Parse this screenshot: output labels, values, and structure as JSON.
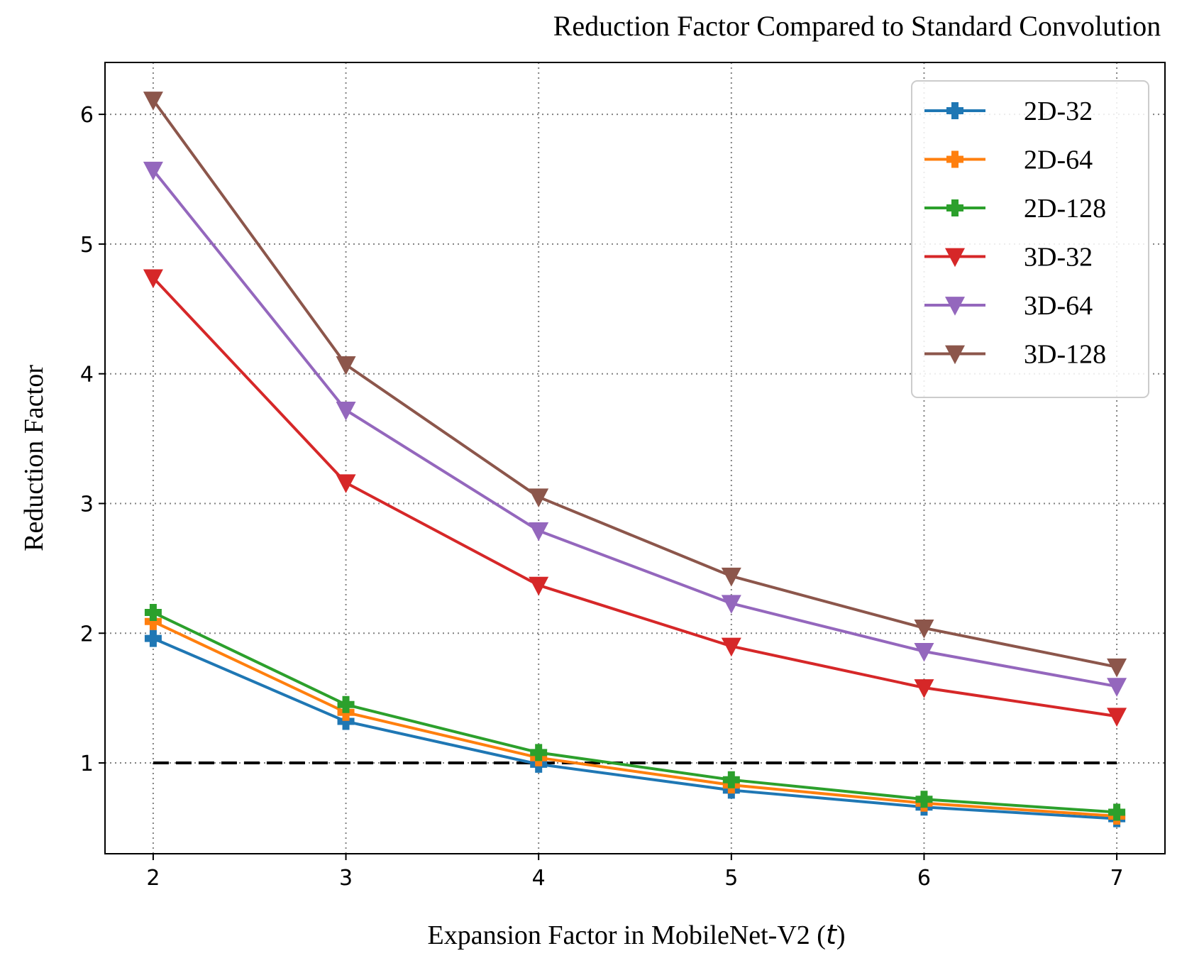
{
  "chart_data": {
    "type": "line",
    "title": "Reduction Factor Compared to Standard Convolution",
    "xlabel": "Expansion Factor in MobileNet-V2 (",
    "xlabel_var": "t",
    "xlabel_end": ")",
    "ylabel": "Reduction Factor",
    "x": [
      2,
      3,
      4,
      5,
      6,
      7
    ],
    "xlim": [
      1.75,
      7.25
    ],
    "ylim": [
      0.3,
      6.4
    ],
    "xticks": [
      "2",
      "3",
      "4",
      "5",
      "6",
      "7"
    ],
    "yticks": [
      "1",
      "2",
      "3",
      "4",
      "5",
      "6"
    ],
    "grid": true,
    "legend_position": "top-right",
    "reference_line": {
      "y": 1.0,
      "x_range": [
        2,
        7
      ],
      "style": "dashed",
      "color": "#000000"
    },
    "series": [
      {
        "name": "2D-32",
        "marker": "plus",
        "color": "#1f77b4",
        "values": [
          1.96,
          1.32,
          0.99,
          0.79,
          0.66,
          0.57
        ]
      },
      {
        "name": "2D-64",
        "marker": "plus",
        "color": "#ff7f0e",
        "values": [
          2.09,
          1.39,
          1.04,
          0.83,
          0.69,
          0.59
        ]
      },
      {
        "name": "2D-128",
        "marker": "plus",
        "color": "#2ca02c",
        "values": [
          2.16,
          1.45,
          1.08,
          0.87,
          0.72,
          0.62
        ]
      },
      {
        "name": "3D-32",
        "marker": "triangle",
        "color": "#d62728",
        "values": [
          4.74,
          3.16,
          2.37,
          1.9,
          1.58,
          1.36
        ]
      },
      {
        "name": "3D-64",
        "marker": "triangle",
        "color": "#9467bd",
        "values": [
          5.57,
          3.72,
          2.79,
          2.23,
          1.86,
          1.59
        ]
      },
      {
        "name": "3D-128",
        "marker": "triangle",
        "color": "#8c564b",
        "values": [
          6.11,
          4.07,
          3.05,
          2.44,
          2.04,
          1.74
        ]
      }
    ]
  }
}
